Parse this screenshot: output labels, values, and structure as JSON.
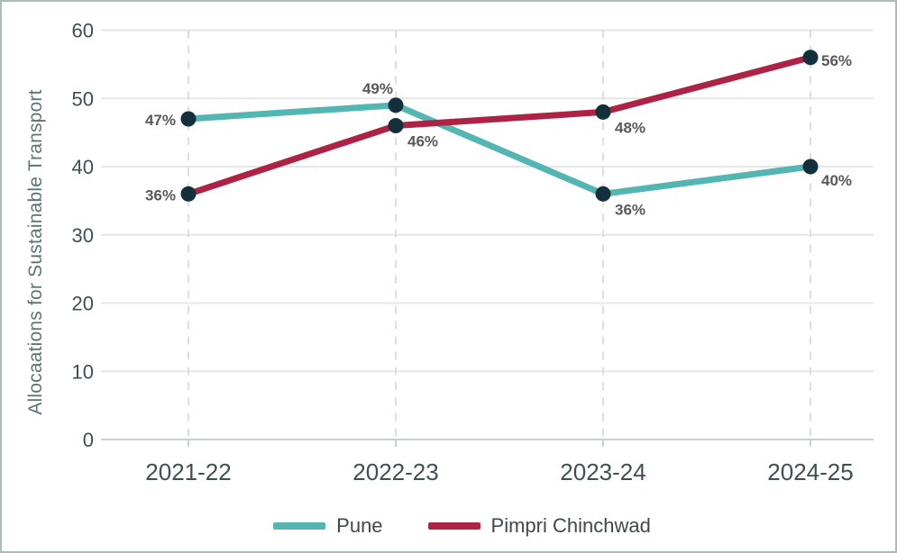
{
  "chart_data": {
    "type": "line",
    "title": "",
    "ylabel": "Allocaations for Sustainable Transport",
    "xlabel": "",
    "categories": [
      "2021-22",
      "2022-23",
      "2023-24",
      "2024-25"
    ],
    "series": [
      {
        "name": "Pune",
        "color": "#54B6B2",
        "values": [
          47,
          49,
          36,
          40
        ],
        "data_labels": [
          "47%",
          "49%",
          "36%",
          "40%"
        ],
        "label_positions": [
          "left",
          "above-left",
          "below-right",
          "right-below"
        ]
      },
      {
        "name": "Pimpri Chinchwad",
        "color": "#AE2245",
        "values": [
          36,
          46,
          48,
          56
        ],
        "data_labels": [
          "36%",
          "46%",
          "48%",
          "56%"
        ],
        "label_positions": [
          "left",
          "below-right",
          "below-right",
          "right"
        ]
      }
    ],
    "ylim": [
      0,
      60
    ],
    "ytick_step": 10,
    "yticks": [
      "0",
      "10",
      "20",
      "30",
      "40",
      "50",
      "60"
    ],
    "grid": {
      "horizontal": "solid",
      "vertical": "dashed"
    },
    "legend_position": "bottom",
    "marker_style": "filled-circle",
    "colors": {
      "marker": "#14303D",
      "data_label": "#58595B",
      "tick_label": "#3E5053",
      "axis_title": "#5D7375",
      "legend_text": "#3F484A",
      "grid": "#E3E8E6",
      "grid_vertical": "#D2D9D6",
      "axis_line": "#C9D1CF",
      "frame_border": "#A9BCB9",
      "background": "#FFFFFF"
    }
  }
}
